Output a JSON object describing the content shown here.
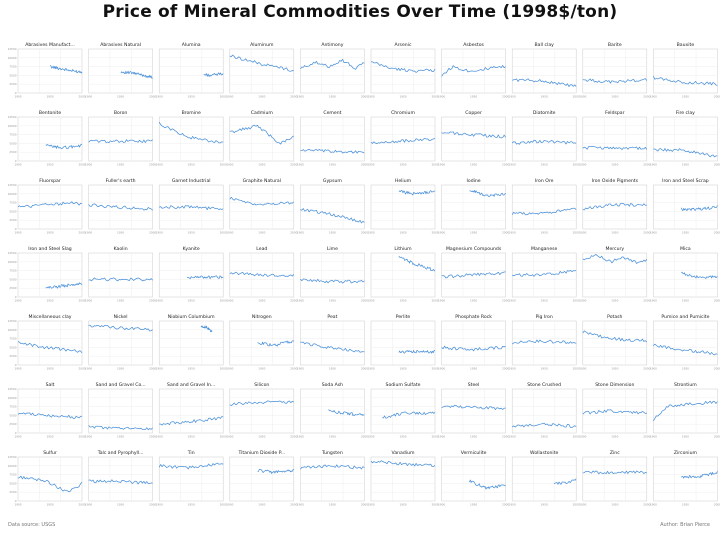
{
  "chart_data": {
    "type": "line",
    "title": "Price of Mineral Commodities Over Time (1998$/ton)",
    "layout": "small-multiples grid, 7 rows x 10 columns",
    "grid": true,
    "x_ticks": [
      "1900",
      "1950",
      "2000"
    ],
    "y_ticks": [
      "0",
      "2500",
      "5000",
      "7500",
      "10000",
      "12500"
    ],
    "panels": [
      {
        "name": "Abrasives Manufact...",
        "x": [
          1958,
          1978,
          1998,
          2015
        ],
        "y": [
          0.6,
          0.55,
          0.5,
          0.48
        ]
      },
      {
        "name": "Abrasives Natural",
        "x": [
          1958,
          1980,
          2000,
          2015
        ],
        "y": [
          0.48,
          0.45,
          0.4,
          0.35
        ]
      },
      {
        "name": "Alumina",
        "x": [
          1980,
          1995,
          2015
        ],
        "y": [
          0.42,
          0.4,
          0.45
        ]
      },
      {
        "name": "Aluminum",
        "x": [
          1900,
          1930,
          1960,
          1990,
          2015
        ],
        "y": [
          0.85,
          0.75,
          0.65,
          0.58,
          0.5
        ]
      },
      {
        "name": "Antimony",
        "x": [
          1900,
          1925,
          1950,
          1975,
          2000,
          2015
        ],
        "y": [
          0.55,
          0.7,
          0.6,
          0.75,
          0.55,
          0.7
        ]
      },
      {
        "name": "Arsenic",
        "x": [
          1900,
          1940,
          1980,
          2015
        ],
        "y": [
          0.7,
          0.55,
          0.5,
          0.52
        ]
      },
      {
        "name": "Asbestos",
        "x": [
          1900,
          1920,
          1950,
          1980,
          2015
        ],
        "y": [
          0.4,
          0.6,
          0.5,
          0.55,
          0.6
        ]
      },
      {
        "name": "Ball clay",
        "x": [
          1900,
          1950,
          2015
        ],
        "y": [
          0.3,
          0.28,
          0.15
        ]
      },
      {
        "name": "Barite",
        "x": [
          1900,
          1950,
          2015
        ],
        "y": [
          0.3,
          0.25,
          0.3
        ]
      },
      {
        "name": "Bauxite",
        "x": [
          1900,
          1950,
          2015
        ],
        "y": [
          0.35,
          0.25,
          0.2
        ]
      },
      {
        "name": "Bentonite",
        "x": [
          1950,
          1980,
          2015
        ],
        "y": [
          0.35,
          0.3,
          0.35
        ]
      },
      {
        "name": "Boron",
        "x": [
          1900,
          1950,
          2015
        ],
        "y": [
          0.45,
          0.45,
          0.45
        ]
      },
      {
        "name": "Bromine",
        "x": [
          1900,
          1950,
          2015
        ],
        "y": [
          0.85,
          0.55,
          0.4
        ]
      },
      {
        "name": "Cadmium",
        "x": [
          1900,
          1950,
          1990,
          2015
        ],
        "y": [
          0.65,
          0.8,
          0.4,
          0.55
        ]
      },
      {
        "name": "Cement",
        "x": [
          1900,
          1950,
          2015
        ],
        "y": [
          0.25,
          0.22,
          0.2
        ]
      },
      {
        "name": "Chromium",
        "x": [
          1900,
          1950,
          2015
        ],
        "y": [
          0.4,
          0.45,
          0.5
        ]
      },
      {
        "name": "Copper",
        "x": [
          1900,
          1950,
          2015
        ],
        "y": [
          0.65,
          0.6,
          0.55
        ]
      },
      {
        "name": "Diatomite",
        "x": [
          1900,
          1950,
          2015
        ],
        "y": [
          0.4,
          0.45,
          0.4
        ]
      },
      {
        "name": "Feldspar",
        "x": [
          1900,
          1950,
          2015
        ],
        "y": [
          0.3,
          0.3,
          0.28
        ]
      },
      {
        "name": "Fire clay",
        "x": [
          1900,
          1950,
          2015
        ],
        "y": [
          0.25,
          0.25,
          0.1
        ]
      },
      {
        "name": "Fluorspar",
        "x": [
          1900,
          1950,
          2000,
          2015
        ],
        "y": [
          0.5,
          0.55,
          0.6,
          0.55
        ]
      },
      {
        "name": "Fuller's earth",
        "x": [
          1900,
          1950,
          2015
        ],
        "y": [
          0.55,
          0.5,
          0.45
        ]
      },
      {
        "name": "Garnet Industrial",
        "x": [
          1900,
          1950,
          2015
        ],
        "y": [
          0.5,
          0.5,
          0.45
        ]
      },
      {
        "name": "Graphite Natural",
        "x": [
          1900,
          1950,
          2015
        ],
        "y": [
          0.7,
          0.55,
          0.6
        ]
      },
      {
        "name": "Gypsum",
        "x": [
          1900,
          1950,
          2015
        ],
        "y": [
          0.45,
          0.35,
          0.15
        ]
      },
      {
        "name": "Helium",
        "x": [
          1950,
          1980,
          2015
        ],
        "y": [
          0.85,
          0.8,
          0.85
        ]
      },
      {
        "name": "Iodine",
        "x": [
          1950,
          1980,
          2015
        ],
        "y": [
          0.9,
          0.75,
          0.8
        ]
      },
      {
        "name": "Iron Ore",
        "x": [
          1900,
          1950,
          2015
        ],
        "y": [
          0.35,
          0.35,
          0.45
        ]
      },
      {
        "name": "Iron Oxide Pigments",
        "x": [
          1900,
          1950,
          2015
        ],
        "y": [
          0.45,
          0.55,
          0.55
        ]
      },
      {
        "name": "Iron and Steel Scrap",
        "x": [
          1950,
          1980,
          2015
        ],
        "y": [
          0.45,
          0.45,
          0.5
        ]
      },
      {
        "name": "Iron and Steel Slag",
        "x": [
          1950,
          1980,
          2015
        ],
        "y": [
          0.2,
          0.25,
          0.3
        ]
      },
      {
        "name": "Kaolin",
        "x": [
          1900,
          1950,
          2015
        ],
        "y": [
          0.4,
          0.4,
          0.4
        ]
      },
      {
        "name": "Kyanite",
        "x": [
          1950,
          1980,
          2015
        ],
        "y": [
          0.45,
          0.45,
          0.45
        ]
      },
      {
        "name": "Lead",
        "x": [
          1900,
          1950,
          2015
        ],
        "y": [
          0.55,
          0.5,
          0.5
        ]
      },
      {
        "name": "Lime",
        "x": [
          1900,
          1950,
          2015
        ],
        "y": [
          0.4,
          0.35,
          0.35
        ]
      },
      {
        "name": "Lithium",
        "x": [
          1950,
          1980,
          2015
        ],
        "y": [
          0.9,
          0.75,
          0.6
        ]
      },
      {
        "name": "Magnesium Compounds",
        "x": [
          1900,
          1950,
          2015
        ],
        "y": [
          0.45,
          0.5,
          0.55
        ]
      },
      {
        "name": "Manganese",
        "x": [
          1900,
          1950,
          2015
        ],
        "y": [
          0.5,
          0.5,
          0.6
        ]
      },
      {
        "name": "Mercury",
        "x": [
          1900,
          1925,
          1950,
          1975,
          2000,
          2015
        ],
        "y": [
          0.85,
          0.95,
          0.8,
          0.9,
          0.75,
          0.85
        ]
      },
      {
        "name": "Mica",
        "x": [
          1950,
          1980,
          2015
        ],
        "y": [
          0.55,
          0.45,
          0.45
        ]
      },
      {
        "name": "Miscellaneous clay",
        "x": [
          1900,
          1950,
          2015
        ],
        "y": [
          0.5,
          0.4,
          0.3
        ]
      },
      {
        "name": "Nickel",
        "x": [
          1900,
          1950,
          2015
        ],
        "y": [
          0.9,
          0.85,
          0.8
        ]
      },
      {
        "name": "Niobium Columbium",
        "x": [
          1975,
          1985,
          1995
        ],
        "y": [
          0.9,
          0.85,
          0.75
        ]
      },
      {
        "name": "Nitrogen",
        "x": [
          1950,
          1980,
          2015
        ],
        "y": [
          0.5,
          0.45,
          0.55
        ]
      },
      {
        "name": "Peat",
        "x": [
          1900,
          1950,
          2015
        ],
        "y": [
          0.5,
          0.4,
          0.3
        ]
      },
      {
        "name": "Perlite",
        "x": [
          1950,
          1980,
          2015
        ],
        "y": [
          0.3,
          0.3,
          0.3
        ]
      },
      {
        "name": "Phosphate Rock",
        "x": [
          1900,
          1950,
          2015
        ],
        "y": [
          0.4,
          0.35,
          0.4
        ]
      },
      {
        "name": "Pig Iron",
        "x": [
          1900,
          1950,
          2015
        ],
        "y": [
          0.5,
          0.55,
          0.5
        ]
      },
      {
        "name": "Potash",
        "x": [
          1900,
          1950,
          2015
        ],
        "y": [
          0.75,
          0.6,
          0.55
        ]
      },
      {
        "name": "Pumice and Pumicite",
        "x": [
          1900,
          1950,
          2015
        ],
        "y": [
          0.45,
          0.35,
          0.25
        ]
      },
      {
        "name": "Salt",
        "x": [
          1900,
          1950,
          2015
        ],
        "y": [
          0.45,
          0.4,
          0.35
        ]
      },
      {
        "name": "Sand and Gravel Co...",
        "x": [
          1900,
          1950,
          2015
        ],
        "y": [
          0.15,
          0.1,
          0.1
        ]
      },
      {
        "name": "Sand and Gravel In...",
        "x": [
          1900,
          1950,
          2015
        ],
        "y": [
          0.2,
          0.25,
          0.35
        ]
      },
      {
        "name": "Silicon",
        "x": [
          1900,
          1950,
          2015
        ],
        "y": [
          0.65,
          0.7,
          0.7
        ]
      },
      {
        "name": "Soda Ash",
        "x": [
          1950,
          1980,
          2015
        ],
        "y": [
          0.5,
          0.45,
          0.4
        ]
      },
      {
        "name": "Sodium Sulfate",
        "x": [
          1920,
          1960,
          2015
        ],
        "y": [
          0.35,
          0.45,
          0.45
        ]
      },
      {
        "name": "Steel",
        "x": [
          1900,
          1950,
          2015
        ],
        "y": [
          0.6,
          0.6,
          0.55
        ]
      },
      {
        "name": "Stone Crushed",
        "x": [
          1900,
          1950,
          2015
        ],
        "y": [
          0.15,
          0.2,
          0.15
        ]
      },
      {
        "name": "Stone Dimension",
        "x": [
          1900,
          1950,
          2015
        ],
        "y": [
          0.45,
          0.5,
          0.45
        ]
      },
      {
        "name": "Strontium",
        "x": [
          1900,
          1925,
          1950,
          2015
        ],
        "y": [
          0.3,
          0.6,
          0.65,
          0.7
        ]
      },
      {
        "name": "Sulfur",
        "x": [
          1900,
          1950,
          1990,
          2015
        ],
        "y": [
          0.55,
          0.45,
          0.2,
          0.4
        ]
      },
      {
        "name": "Talc and Pyrophyll...",
        "x": [
          1900,
          1950,
          2015
        ],
        "y": [
          0.45,
          0.45,
          0.4
        ]
      },
      {
        "name": "Tin",
        "x": [
          1900,
          1950,
          2015
        ],
        "y": [
          0.8,
          0.75,
          0.85
        ]
      },
      {
        "name": "Titanium Dioxide P...",
        "x": [
          1950,
          1980,
          2015
        ],
        "y": [
          0.7,
          0.65,
          0.7
        ]
      },
      {
        "name": "Tungsten",
        "x": [
          1900,
          1950,
          2015
        ],
        "y": [
          0.75,
          0.8,
          0.75
        ]
      },
      {
        "name": "Vanadium",
        "x": [
          1900,
          1950,
          2015
        ],
        "y": [
          0.9,
          0.85,
          0.8
        ]
      },
      {
        "name": "Vermiculite",
        "x": [
          1950,
          1980,
          2015
        ],
        "y": [
          0.45,
          0.3,
          0.35
        ]
      },
      {
        "name": "Wollastonite",
        "x": [
          1975,
          1995,
          2015
        ],
        "y": [
          0.4,
          0.4,
          0.5
        ]
      },
      {
        "name": "Zinc",
        "x": [
          1900,
          1950,
          2015
        ],
        "y": [
          0.65,
          0.65,
          0.65
        ]
      },
      {
        "name": "Zirconium",
        "x": [
          1950,
          1980,
          2015
        ],
        "y": [
          0.55,
          0.55,
          0.65
        ]
      }
    ]
  },
  "footer": {
    "source": "Data source: USGS",
    "author": "Author: Brian Pierce"
  },
  "colors": {
    "line": "#4a90d9",
    "grid": "#eaeaea",
    "frame": "#cccccc"
  }
}
